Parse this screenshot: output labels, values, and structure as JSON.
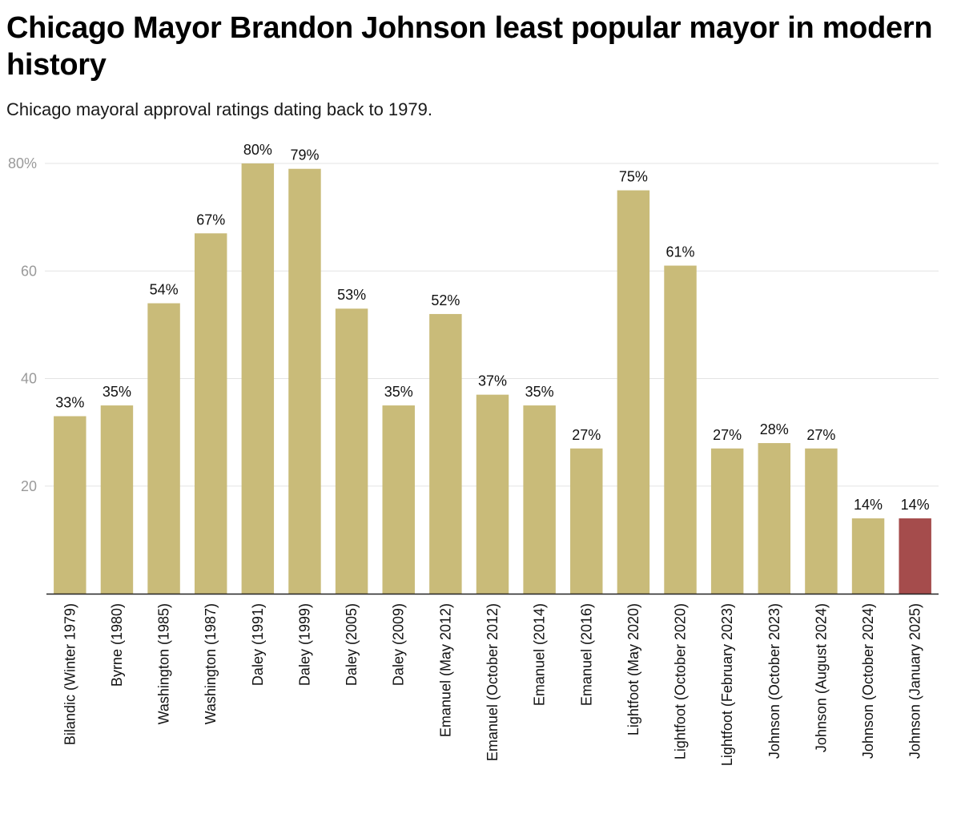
{
  "chart_data": {
    "type": "bar",
    "title": "Chicago Mayor Brandon Johnson least popular mayor in modern history",
    "subtitle": "Chicago mayoral approval ratings dating back to 1979.",
    "xlabel": "",
    "ylabel": "",
    "ylim": [
      0,
      80
    ],
    "yticks": [
      {
        "value": 20,
        "label": "20"
      },
      {
        "value": 40,
        "label": "40"
      },
      {
        "value": 60,
        "label": "60"
      },
      {
        "value": 80,
        "label": "80%"
      }
    ],
    "grid": true,
    "categories": [
      "Bilandic (Winter 1979)",
      "Byrne (1980)",
      "Washington (1985)",
      "Washington (1987)",
      "Daley (1991)",
      "Daley (1999)",
      "Daley (2005)",
      "Daley (2009)",
      "Emanuel (May 2012)",
      "Emanuel (October 2012)",
      "Emanuel (2014)",
      "Emanuel (2016)",
      "Lightfoot (May 2020)",
      "Lightfoot (October 2020)",
      "Lightfoot (February 2023)",
      "Johnson (October 2023)",
      "Johnson (August 2024)",
      "Johnson (October 2024)",
      "Johnson (January 2025)"
    ],
    "values": [
      33,
      35,
      54,
      67,
      80,
      79,
      53,
      35,
      52,
      37,
      35,
      27,
      75,
      61,
      27,
      28,
      27,
      14,
      14
    ],
    "data_labels": [
      "33%",
      "35%",
      "54%",
      "67%",
      "80%",
      "79%",
      "53%",
      "35%",
      "52%",
      "37%",
      "35%",
      "27%",
      "75%",
      "61%",
      "27%",
      "28%",
      "27%",
      "14%",
      "14%"
    ],
    "colors": {
      "default": "#c9bb79",
      "highlight": "#a54c4c",
      "grid": "#e3e3e3",
      "axis": "#222222"
    },
    "highlight_index": 18
  }
}
